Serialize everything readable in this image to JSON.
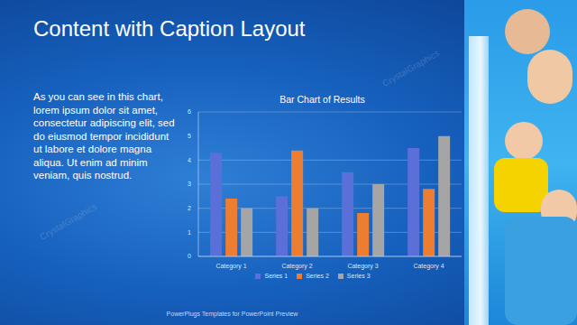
{
  "slide": {
    "title": "Content with Caption Layout",
    "caption": "As you can see in this chart, lorem ipsum dolor sit amet, consectetur adipiscing elit, sed do eiusmod tempor incididunt ut labore et dolore magna aliqua. Ut enim ad minim veniam, quis nostrud.",
    "footer": "PowerPlugs Templates for PowerPoint Preview",
    "watermark": "CrystalGraphics"
  },
  "chart_data": {
    "type": "bar",
    "title": "Bar Chart of Results",
    "categories": [
      "Category 1",
      "Category 2",
      "Category 3",
      "Category 4"
    ],
    "series": [
      {
        "name": "Series 1",
        "color": "#5b6fd8",
        "values": [
          4.3,
          2.5,
          3.5,
          4.5
        ]
      },
      {
        "name": "Series 2",
        "color": "#ed7d31",
        "values": [
          2.4,
          4.4,
          1.8,
          2.8
        ]
      },
      {
        "name": "Series 3",
        "color": "#a5a5a5",
        "values": [
          2,
          2,
          3,
          5
        ]
      }
    ],
    "ylim": [
      0,
      6
    ],
    "yticks": [
      0,
      1,
      2,
      3,
      4,
      5,
      6
    ],
    "grid": true,
    "legend": "bottom"
  }
}
